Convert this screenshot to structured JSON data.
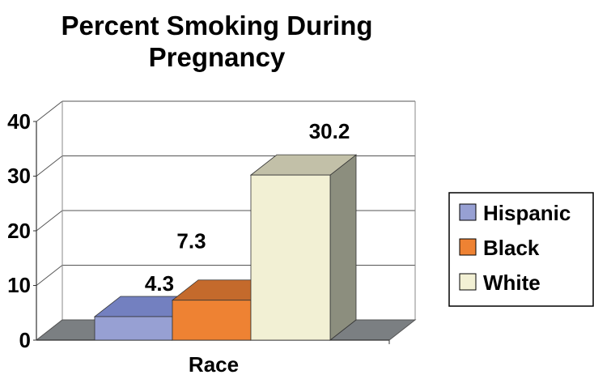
{
  "chart_data": {
    "type": "bar",
    "title_lines": [
      "Percent Smoking During",
      "Pregnancy"
    ],
    "xlabel": "Race",
    "ylabel": "",
    "ylim": [
      0,
      40
    ],
    "yticks": [
      "0",
      "10",
      "20",
      "30",
      "40"
    ],
    "grid": true,
    "legend_position": "right",
    "series": [
      {
        "name": "Hispanic",
        "value": 4.3,
        "label": "4.3",
        "color": "#97A0D3",
        "top_color": "#7380C0",
        "side_color": "#5F6AA8"
      },
      {
        "name": "Black",
        "value": 7.3,
        "label": "7.3",
        "color": "#EE8233",
        "top_color": "#C46A2C",
        "side_color": "#B0601F"
      },
      {
        "name": "White",
        "value": 30.2,
        "label": "30.2",
        "color": "#F2F0D4",
        "top_color": "#C2C0A8",
        "side_color": "#8C8E7E"
      }
    ]
  }
}
